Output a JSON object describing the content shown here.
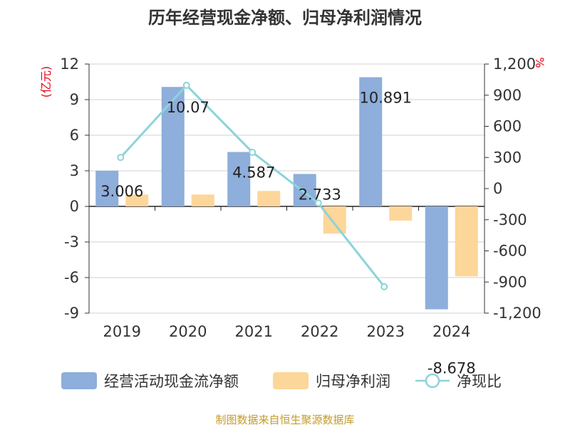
{
  "chart_data": {
    "type": "bar",
    "title": "历年经营现金净额、归母净利润情况",
    "categories": [
      "2019",
      "2020",
      "2021",
      "2022",
      "2023",
      "2024"
    ],
    "left_axis": {
      "unit_label": "(亿元)",
      "ylim": [
        -9,
        12
      ],
      "ticks": [
        "12",
        "9",
        "6",
        "3",
        "0",
        "-3",
        "-6",
        "-9"
      ]
    },
    "right_axis": {
      "unit_label": "%",
      "ylim": [
        -1200,
        1200
      ],
      "ticks": [
        "1,200",
        "900",
        "600",
        "300",
        "0",
        "-300",
        "-600",
        "-900",
        "-1,200"
      ]
    },
    "series": [
      {
        "name": "经营活动现金流净额",
        "axis": "left",
        "kind": "bar",
        "color": "#8eaedb",
        "values": [
          3.006,
          10.07,
          4.587,
          2.733,
          10.891,
          -8.678
        ],
        "labels": [
          "3.006",
          "10.07",
          "4.587",
          "2.733",
          "10.891",
          "-8.678"
        ]
      },
      {
        "name": "归母净利润",
        "axis": "left",
        "kind": "bar",
        "color": "#fdd69a",
        "values": [
          1.0,
          1.0,
          1.3,
          -2.3,
          -1.2,
          -5.9
        ]
      },
      {
        "name": "净现比",
        "axis": "right",
        "kind": "line",
        "color": "#8dd3da",
        "values": [
          300,
          995,
          350,
          -140,
          -945,
          null
        ]
      }
    ],
    "legend": "bottom",
    "grid": true
  },
  "footer": {
    "source": "制图数据来自恒生聚源数据库"
  }
}
